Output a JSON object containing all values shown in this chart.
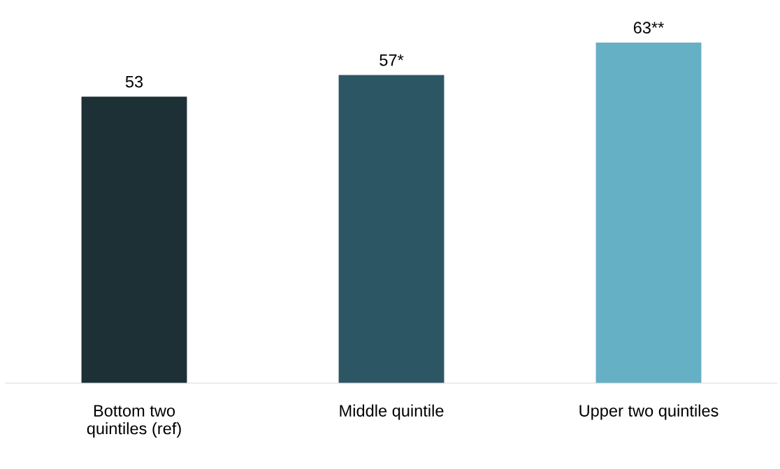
{
  "chart_data": {
    "type": "bar",
    "categories": [
      "Bottom two\nquintiles (ref)",
      "Middle quintile",
      "Upper two quintiles"
    ],
    "values": [
      53,
      57,
      63
    ],
    "colors": [
      "#1c3035",
      "#2d5664",
      "#66b0c6"
    ],
    "value_labels": [
      "53",
      "57*",
      "63**"
    ],
    "grid": false
  }
}
